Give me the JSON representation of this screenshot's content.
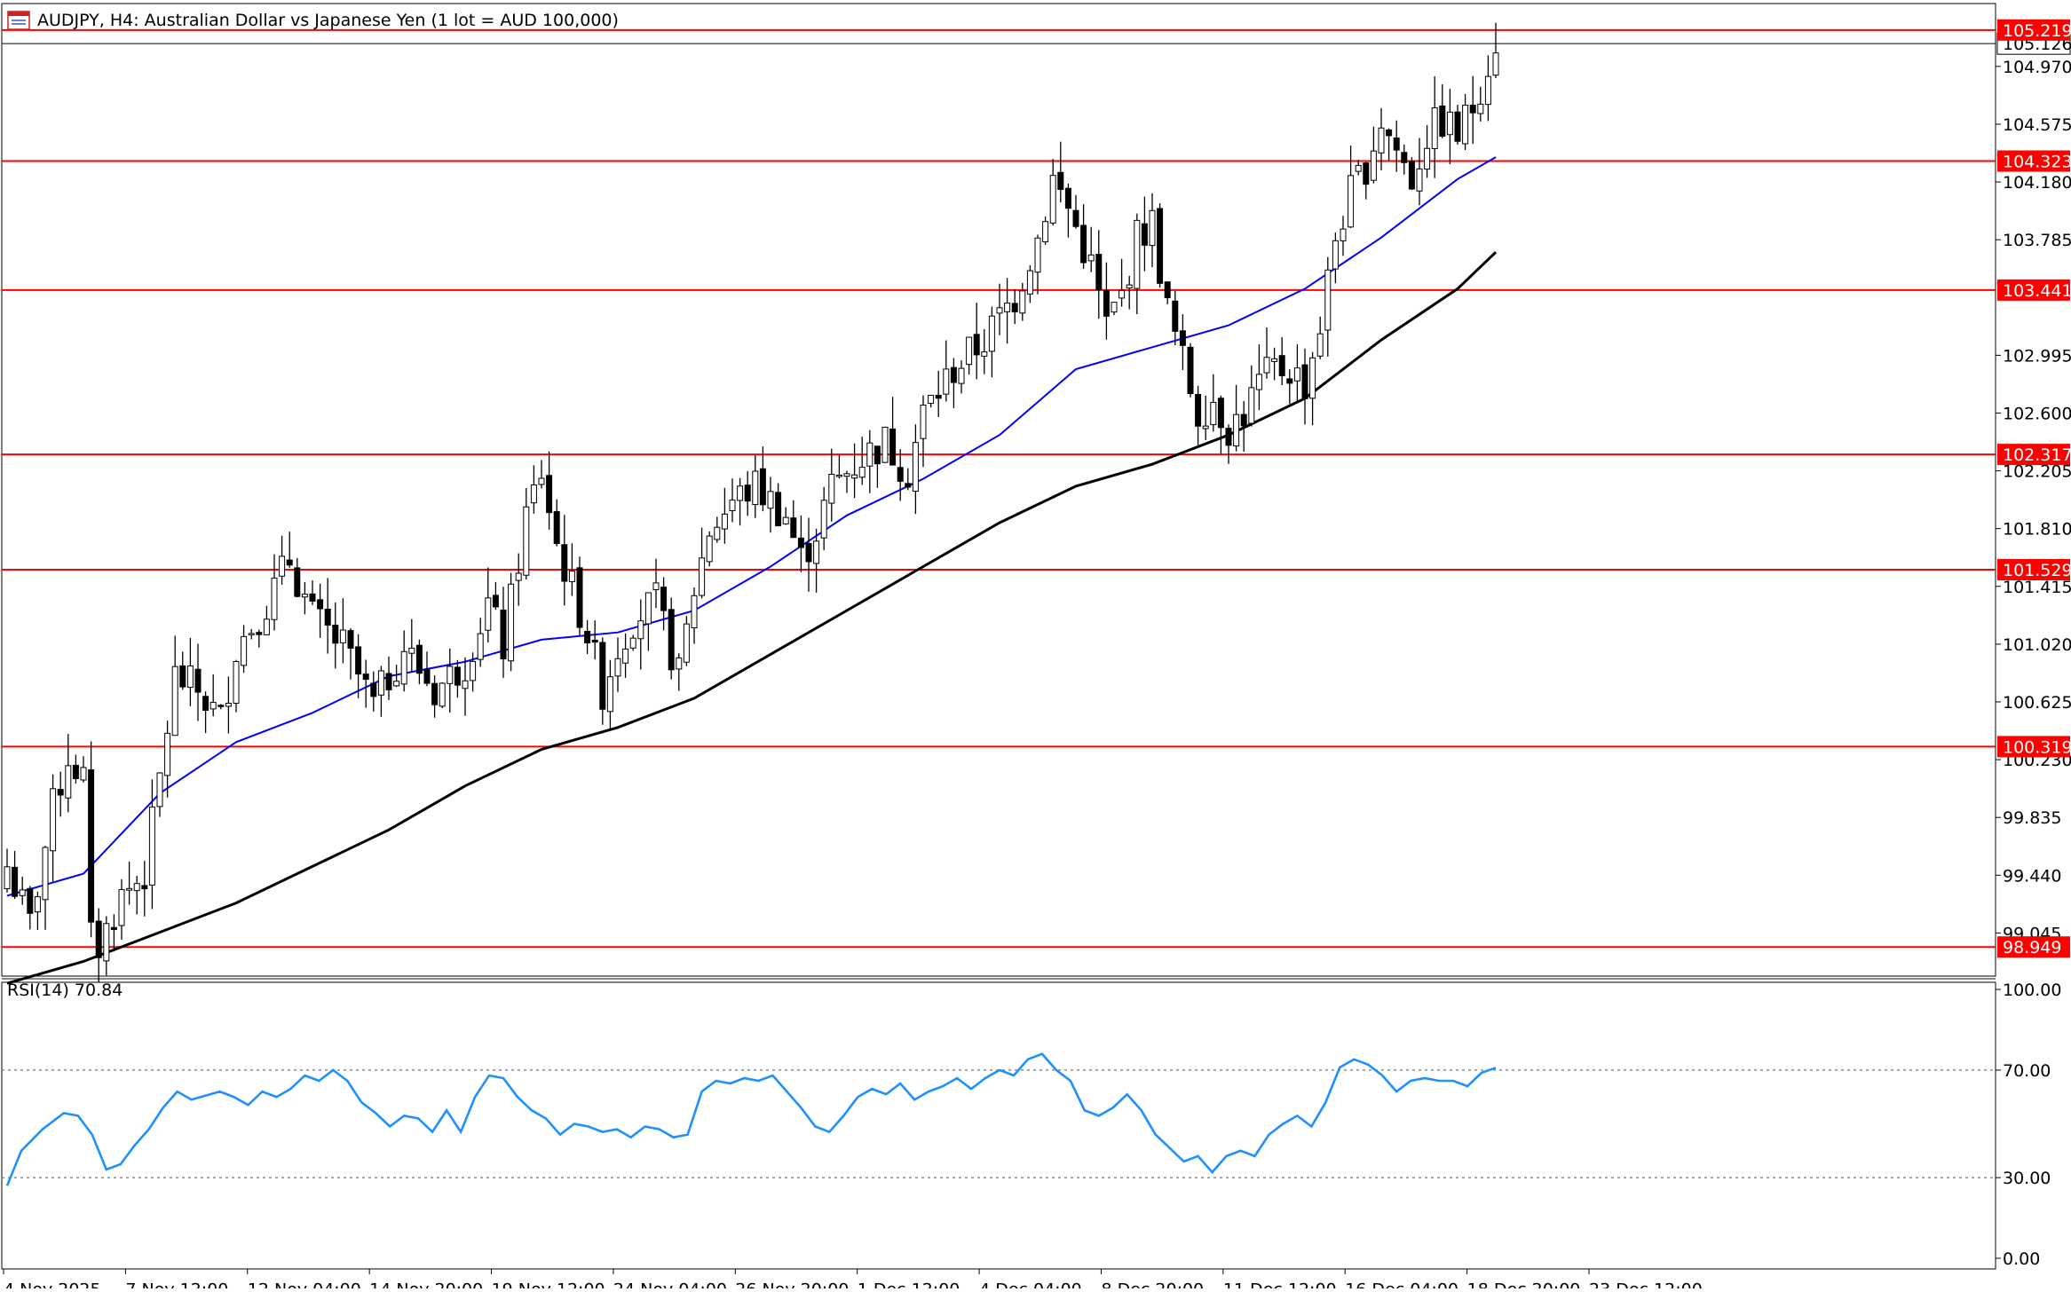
{
  "window": {
    "title": "AUDJPY, H4:  Australian Dollar vs Japanese Yen (1 lot = AUD 100,000)",
    "icon": "chart-window-icon"
  },
  "colors": {
    "background": "#ffffff",
    "candle_bull_fill": "#ffffff",
    "candle_bear_fill": "#000000",
    "candle_wick": "#000000",
    "ma_fast": "#0000ff",
    "ma_slow": "#000000",
    "level_line": "#ff0000",
    "level_label_bg": "#ff0000",
    "level_label_text": "#ffffff",
    "rsi_line": "#1e90ff",
    "axis_text": "#000000"
  },
  "chart_data": [
    {
      "type": "candlestick",
      "symbol": "AUDJPY",
      "timeframe": "H4",
      "ylim": [
        98.75,
        105.4
      ],
      "y_ticks": [
        "104.970",
        "104.575",
        "104.180",
        "103.785",
        "102.995",
        "102.600",
        "102.205",
        "101.810",
        "101.415",
        "101.020",
        "100.625",
        "100.230",
        "99.835",
        "99.440",
        "99.045"
      ],
      "current_price": "105.126",
      "price_levels": [
        {
          "label": "105.219",
          "value": 105.219
        },
        {
          "label": "104.323",
          "value": 104.323
        },
        {
          "label": "103.441",
          "value": 103.441
        },
        {
          "label": "102.317",
          "value": 102.317
        },
        {
          "label": "101.529",
          "value": 101.529
        },
        {
          "label": "100.319",
          "value": 100.319
        },
        {
          "label": "98.949",
          "value": 98.949
        }
      ],
      "x_labels": [
        "4 Nov 2025",
        "7 Nov 12:00",
        "12 Nov 04:00",
        "14 Nov 20:00",
        "19 Nov 12:00",
        "24 Nov 04:00",
        "26 Nov 20:00",
        "1 Dec 12:00",
        "4 Dec 04:00",
        "8 Dec 20:00",
        "11 Dec 12:00",
        "16 Dec 04:00",
        "18 Dec 20:00",
        "23 Dec 12:00"
      ],
      "close_path": [
        [
          0,
          99.5
        ],
        [
          3,
          99.1
        ],
        [
          6,
          99.9
        ],
        [
          8,
          100.25
        ],
        [
          10,
          100.1
        ],
        [
          11,
          99.0
        ],
        [
          12,
          98.95
        ],
        [
          15,
          99.3
        ],
        [
          18,
          99.45
        ],
        [
          20,
          100.1
        ],
        [
          22,
          100.8
        ],
        [
          25,
          100.7
        ],
        [
          28,
          100.5
        ],
        [
          30,
          101.0
        ],
        [
          34,
          101.3
        ],
        [
          37,
          101.6
        ],
        [
          40,
          101.2
        ],
        [
          44,
          101.0
        ],
        [
          48,
          100.6
        ],
        [
          52,
          101.0
        ],
        [
          56,
          100.7
        ],
        [
          60,
          100.9
        ],
        [
          63,
          101.3
        ],
        [
          65,
          101.0
        ],
        [
          68,
          101.9
        ],
        [
          70,
          102.2
        ],
        [
          72,
          101.7
        ],
        [
          74,
          101.4
        ],
        [
          76,
          101.1
        ],
        [
          78,
          100.7
        ],
        [
          80,
          101.0
        ],
        [
          82,
          101.2
        ],
        [
          85,
          101.3
        ],
        [
          88,
          100.8
        ],
        [
          90,
          101.4
        ],
        [
          92,
          101.8
        ],
        [
          95,
          102.0
        ],
        [
          98,
          102.1
        ],
        [
          102,
          101.9
        ],
        [
          104,
          101.6
        ],
        [
          106,
          101.8
        ],
        [
          108,
          102.1
        ],
        [
          112,
          102.3
        ],
        [
          115,
          102.4
        ],
        [
          118,
          102.2
        ],
        [
          120,
          102.6
        ],
        [
          124,
          102.9
        ],
        [
          128,
          103.1
        ],
        [
          132,
          103.4
        ],
        [
          135,
          103.8
        ],
        [
          137,
          104.2
        ],
        [
          139,
          104.0
        ],
        [
          142,
          103.6
        ],
        [
          144,
          103.2
        ],
        [
          146,
          103.4
        ],
        [
          148,
          103.8
        ],
        [
          150,
          103.9
        ],
        [
          152,
          103.3
        ],
        [
          154,
          102.95
        ],
        [
          156,
          102.6
        ],
        [
          158,
          102.7
        ],
        [
          160,
          102.5
        ],
        [
          162,
          102.6
        ],
        [
          164,
          102.8
        ],
        [
          166,
          102.9
        ],
        [
          168,
          102.9
        ],
        [
          170,
          102.8
        ],
        [
          172,
          103.2
        ],
        [
          174,
          103.8
        ],
        [
          176,
          104.1
        ],
        [
          178,
          104.3
        ],
        [
          180,
          104.6
        ],
        [
          182,
          104.4
        ],
        [
          184,
          104.2
        ],
        [
          186,
          104.5
        ],
        [
          188,
          104.6
        ],
        [
          190,
          104.5
        ],
        [
          192,
          104.7
        ],
        [
          194,
          105.0
        ],
        [
          195,
          105.15
        ]
      ],
      "series": [
        {
          "name": "",
          "kind": "ma_fast",
          "values": [
            [
              0,
              99.3
            ],
            [
              10,
              99.45
            ],
            [
              20,
              100.0
            ],
            [
              30,
              100.35
            ],
            [
              40,
              100.55
            ],
            [
              50,
              100.8
            ],
            [
              60,
              100.9
            ],
            [
              70,
              101.05
            ],
            [
              80,
              101.1
            ],
            [
              90,
              101.25
            ],
            [
              100,
              101.55
            ],
            [
              110,
              101.9
            ],
            [
              120,
              102.15
            ],
            [
              130,
              102.45
            ],
            [
              140,
              102.9
            ],
            [
              150,
              103.05
            ],
            [
              160,
              103.2
            ],
            [
              170,
              103.45
            ],
            [
              180,
              103.8
            ],
            [
              190,
              104.2
            ],
            [
              195,
              104.35
            ]
          ]
        },
        {
          "name": "",
          "kind": "ma_slow",
          "values": [
            [
              0,
              98.7
            ],
            [
              10,
              98.85
            ],
            [
              20,
              99.05
            ],
            [
              30,
              99.25
            ],
            [
              40,
              99.5
            ],
            [
              50,
              99.75
            ],
            [
              60,
              100.05
            ],
            [
              70,
              100.3
            ],
            [
              80,
              100.45
            ],
            [
              90,
              100.65
            ],
            [
              100,
              100.95
            ],
            [
              110,
              101.25
            ],
            [
              120,
              101.55
            ],
            [
              130,
              101.85
            ],
            [
              140,
              102.1
            ],
            [
              150,
              102.25
            ],
            [
              160,
              102.45
            ],
            [
              170,
              102.7
            ],
            [
              180,
              103.1
            ],
            [
              190,
              103.45
            ],
            [
              195,
              103.7
            ]
          ]
        }
      ]
    },
    {
      "type": "line",
      "title": "RSI(14) 70.84",
      "ylim": [
        0,
        100
      ],
      "y_ticks": [
        "100.00",
        "70.00",
        "30.00",
        "0.00"
      ],
      "levels": [
        70,
        30
      ],
      "values": [
        [
          0,
          27
        ],
        [
          2,
          40
        ],
        [
          5,
          48
        ],
        [
          8,
          54
        ],
        [
          10,
          53
        ],
        [
          12,
          46
        ],
        [
          14,
          33
        ],
        [
          16,
          35
        ],
        [
          18,
          42
        ],
        [
          20,
          48
        ],
        [
          22,
          56
        ],
        [
          24,
          62
        ],
        [
          26,
          59
        ],
        [
          30,
          62
        ],
        [
          32,
          60
        ],
        [
          34,
          57
        ],
        [
          36,
          62
        ],
        [
          38,
          60
        ],
        [
          40,
          63
        ],
        [
          42,
          68
        ],
        [
          44,
          66
        ],
        [
          46,
          70
        ],
        [
          48,
          66
        ],
        [
          50,
          58
        ],
        [
          52,
          54
        ],
        [
          54,
          49
        ],
        [
          56,
          53
        ],
        [
          58,
          52
        ],
        [
          60,
          47
        ],
        [
          62,
          55
        ],
        [
          64,
          47
        ],
        [
          66,
          60
        ],
        [
          68,
          68
        ],
        [
          70,
          67
        ],
        [
          72,
          60
        ],
        [
          74,
          55
        ],
        [
          76,
          52
        ],
        [
          78,
          46
        ],
        [
          80,
          50
        ],
        [
          82,
          49
        ],
        [
          84,
          47
        ],
        [
          86,
          48
        ],
        [
          88,
          45
        ],
        [
          90,
          49
        ],
        [
          92,
          48
        ],
        [
          94,
          45
        ],
        [
          96,
          46
        ],
        [
          98,
          62
        ],
        [
          100,
          66
        ],
        [
          102,
          65
        ],
        [
          104,
          67
        ],
        [
          106,
          66
        ],
        [
          108,
          68
        ],
        [
          110,
          62
        ],
        [
          112,
          56
        ],
        [
          114,
          49
        ],
        [
          116,
          47
        ],
        [
          118,
          53
        ],
        [
          120,
          60
        ],
        [
          122,
          63
        ],
        [
          124,
          61
        ],
        [
          126,
          65
        ],
        [
          128,
          59
        ],
        [
          130,
          62
        ],
        [
          132,
          64
        ],
        [
          134,
          67
        ],
        [
          136,
          63
        ],
        [
          138,
          67
        ],
        [
          140,
          70
        ],
        [
          142,
          68
        ],
        [
          144,
          74
        ],
        [
          146,
          76
        ],
        [
          148,
          70
        ],
        [
          150,
          66
        ],
        [
          152,
          55
        ],
        [
          154,
          53
        ],
        [
          156,
          56
        ],
        [
          158,
          61
        ],
        [
          160,
          55
        ],
        [
          162,
          46
        ],
        [
          164,
          41
        ],
        [
          166,
          36
        ],
        [
          168,
          38
        ],
        [
          170,
          32
        ],
        [
          172,
          38
        ],
        [
          174,
          40
        ],
        [
          176,
          38
        ],
        [
          178,
          46
        ],
        [
          180,
          50
        ],
        [
          182,
          53
        ],
        [
          184,
          49
        ],
        [
          186,
          58
        ],
        [
          188,
          71
        ],
        [
          190,
          74
        ],
        [
          192,
          72
        ],
        [
          194,
          68
        ],
        [
          196,
          62
        ],
        [
          198,
          66
        ],
        [
          200,
          67
        ],
        [
          202,
          66
        ],
        [
          204,
          66
        ],
        [
          206,
          64
        ],
        [
          208,
          69
        ],
        [
          210,
          70.84
        ]
      ]
    }
  ]
}
